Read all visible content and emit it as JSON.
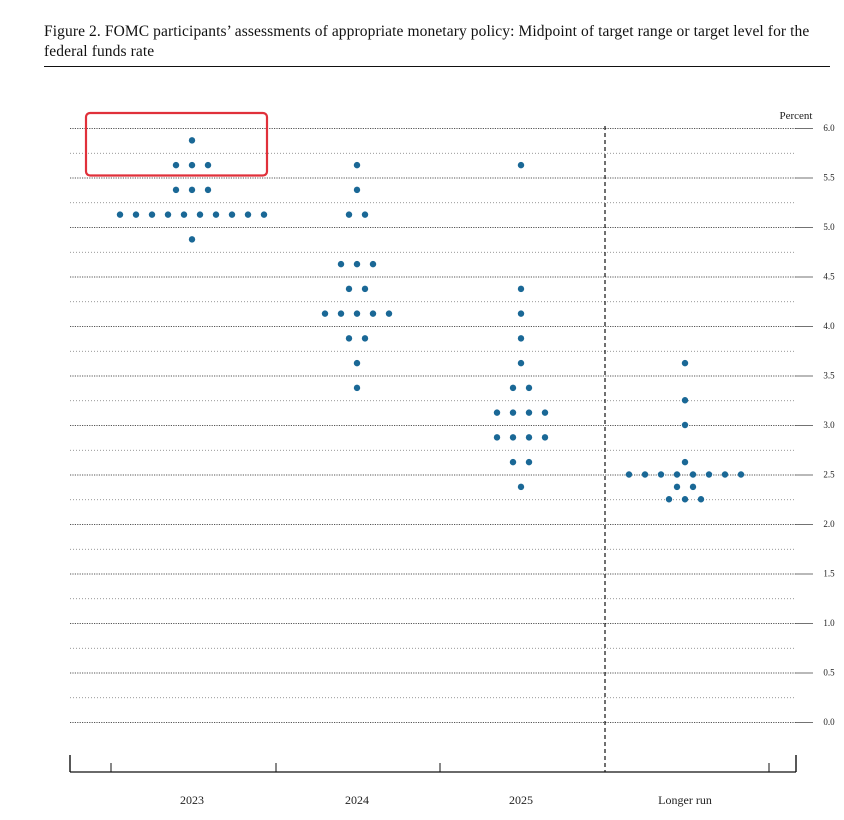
{
  "figure": {
    "title": "Figure 2.  FOMC participants’ assessments of appropriate monetary policy: Midpoint of target range or target level for the federal funds rate"
  },
  "chart_data": {
    "type": "scatter",
    "subtype": "dot-plot",
    "unit_label": "Percent",
    "categories": [
      "2023",
      "2024",
      "2025",
      "Longer run"
    ],
    "ylim": [
      0,
      6.0
    ],
    "yticks": [
      "0.0",
      "0.5",
      "1.0",
      "1.5",
      "2.0",
      "2.5",
      "3.0",
      "3.5",
      "4.0",
      "4.5",
      "5.0",
      "5.5",
      "6.0"
    ],
    "grid": true,
    "dot_color": "#1a6896",
    "highlight_color": "#e0303a",
    "highlight": {
      "category": "2023",
      "y_range": [
        5.5,
        6.0
      ]
    },
    "series": [
      {
        "category": "2023",
        "dots": [
          {
            "y": 5.875,
            "count": 1
          },
          {
            "y": 5.625,
            "count": 3
          },
          {
            "y": 5.375,
            "count": 3
          },
          {
            "y": 5.125,
            "count": 10
          },
          {
            "y": 4.875,
            "count": 1
          }
        ]
      },
      {
        "category": "2024",
        "dots": [
          {
            "y": 5.625,
            "count": 1
          },
          {
            "y": 5.375,
            "count": 1
          },
          {
            "y": 5.125,
            "count": 2
          },
          {
            "y": 4.625,
            "count": 3
          },
          {
            "y": 4.375,
            "count": 2
          },
          {
            "y": 4.125,
            "count": 5
          },
          {
            "y": 3.875,
            "count": 2
          },
          {
            "y": 3.625,
            "count": 1
          },
          {
            "y": 3.375,
            "count": 1
          }
        ]
      },
      {
        "category": "2025",
        "dots": [
          {
            "y": 5.625,
            "count": 1
          },
          {
            "y": 4.375,
            "count": 1
          },
          {
            "y": 4.125,
            "count": 1
          },
          {
            "y": 3.875,
            "count": 1
          },
          {
            "y": 3.625,
            "count": 1
          },
          {
            "y": 3.375,
            "count": 2
          },
          {
            "y": 3.125,
            "count": 4
          },
          {
            "y": 2.875,
            "count": 4
          },
          {
            "y": 2.625,
            "count": 2
          },
          {
            "y": 2.375,
            "count": 1
          }
        ]
      },
      {
        "category": "Longer run",
        "dots": [
          {
            "y": 3.625,
            "count": 1
          },
          {
            "y": 3.25,
            "count": 1
          },
          {
            "y": 3.0,
            "count": 1
          },
          {
            "y": 2.625,
            "count": 1
          },
          {
            "y": 2.5,
            "count": 8
          },
          {
            "y": 2.375,
            "count": 2
          },
          {
            "y": 2.25,
            "count": 3
          }
        ]
      }
    ]
  }
}
